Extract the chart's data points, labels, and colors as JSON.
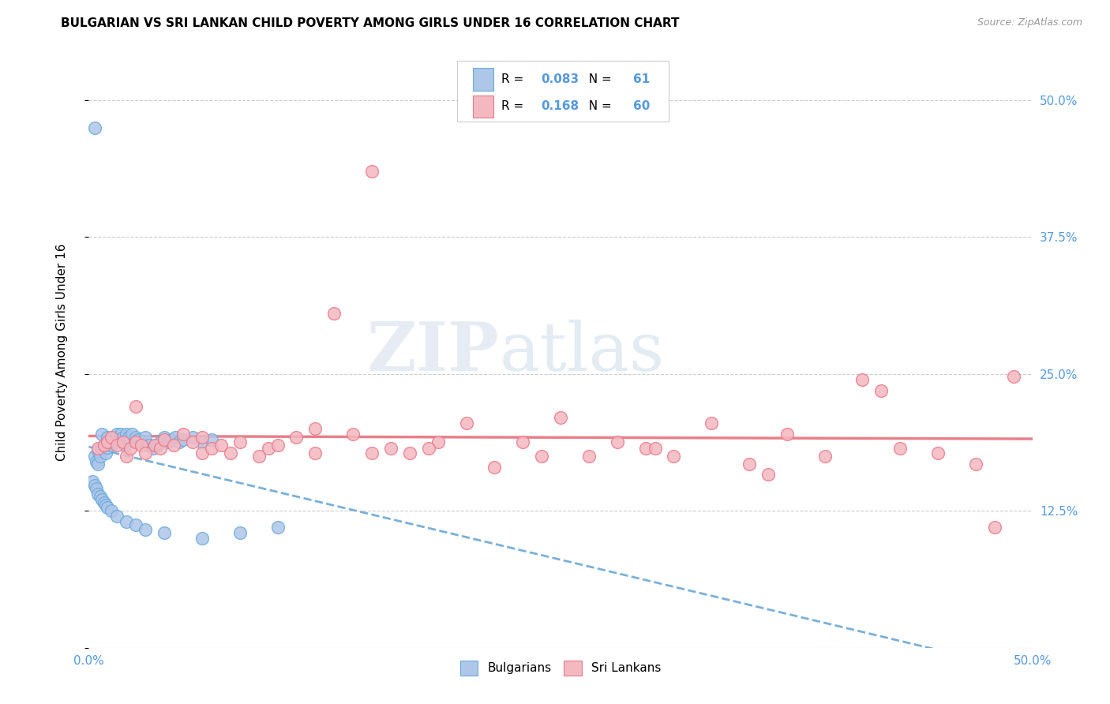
{
  "title": "BULGARIAN VS SRI LANKAN CHILD POVERTY AMONG GIRLS UNDER 16 CORRELATION CHART",
  "source": "Source: ZipAtlas.com",
  "ylabel": "Child Poverty Among Girls Under 16",
  "xlim": [
    0.0,
    0.5
  ],
  "ylim": [
    0.0,
    0.54
  ],
  "ytick_positions": [
    0.0,
    0.125,
    0.25,
    0.375,
    0.5
  ],
  "ytick_labels_right": [
    "",
    "12.5%",
    "25.0%",
    "37.5%",
    "50.0%"
  ],
  "xtick_positions": [
    0.0,
    0.1,
    0.2,
    0.3,
    0.4,
    0.5
  ],
  "xtick_labels": [
    "0.0%",
    "",
    "",
    "",
    "",
    "50.0%"
  ],
  "watermark_zip": "ZIP",
  "watermark_atlas": "atlas",
  "bg_color": "#ffffff",
  "grid_color": "#cccccc",
  "bulgarian_face": "#aec6e8",
  "bulgarian_edge": "#6aabde",
  "sri_lankan_face": "#f4b8c1",
  "sri_lankan_edge": "#e87a8a",
  "trend_blue_color": "#7ab0d8",
  "trend_pink_color": "#e8808a",
  "legend_R_bg": "0.083",
  "legend_N_bg": "61",
  "legend_R_sl": "0.168",
  "legend_N_sl": "60",
  "bg_x": [
    0.003,
    0.004,
    0.005,
    0.005,
    0.006,
    0.007,
    0.007,
    0.008,
    0.009,
    0.01,
    0.01,
    0.011,
    0.012,
    0.013,
    0.014,
    0.015,
    0.016,
    0.017,
    0.018,
    0.019,
    0.02,
    0.021,
    0.022,
    0.023,
    0.024,
    0.025,
    0.026,
    0.028,
    0.03,
    0.032,
    0.034,
    0.036,
    0.038,
    0.04,
    0.042,
    0.044,
    0.046,
    0.048,
    0.05,
    0.055,
    0.06,
    0.065,
    0.002,
    0.003,
    0.004,
    0.005,
    0.006,
    0.007,
    0.008,
    0.009,
    0.01,
    0.012,
    0.015,
    0.02,
    0.025,
    0.03,
    0.04,
    0.06,
    0.08,
    0.1,
    0.003
  ],
  "bg_y": [
    0.175,
    0.17,
    0.168,
    0.18,
    0.175,
    0.182,
    0.195,
    0.185,
    0.178,
    0.192,
    0.183,
    0.188,
    0.185,
    0.192,
    0.188,
    0.195,
    0.19,
    0.195,
    0.192,
    0.185,
    0.195,
    0.192,
    0.19,
    0.195,
    0.188,
    0.192,
    0.19,
    0.188,
    0.192,
    0.185,
    0.182,
    0.185,
    0.188,
    0.192,
    0.188,
    0.19,
    0.192,
    0.188,
    0.19,
    0.192,
    0.188,
    0.19,
    0.152,
    0.148,
    0.145,
    0.14,
    0.138,
    0.135,
    0.132,
    0.13,
    0.128,
    0.125,
    0.12,
    0.115,
    0.112,
    0.108,
    0.105,
    0.1,
    0.105,
    0.11,
    0.475
  ],
  "sl_x": [
    0.005,
    0.008,
    0.01,
    0.012,
    0.015,
    0.018,
    0.02,
    0.022,
    0.025,
    0.028,
    0.03,
    0.035,
    0.038,
    0.04,
    0.045,
    0.05,
    0.055,
    0.06,
    0.065,
    0.07,
    0.075,
    0.08,
    0.09,
    0.095,
    0.1,
    0.11,
    0.12,
    0.13,
    0.14,
    0.15,
    0.16,
    0.17,
    0.185,
    0.2,
    0.215,
    0.23,
    0.25,
    0.265,
    0.28,
    0.295,
    0.31,
    0.33,
    0.35,
    0.37,
    0.39,
    0.41,
    0.43,
    0.45,
    0.47,
    0.49,
    0.025,
    0.06,
    0.12,
    0.18,
    0.24,
    0.3,
    0.36,
    0.42,
    0.48,
    0.15
  ],
  "sl_y": [
    0.182,
    0.185,
    0.188,
    0.192,
    0.185,
    0.188,
    0.175,
    0.182,
    0.188,
    0.185,
    0.178,
    0.185,
    0.182,
    0.19,
    0.185,
    0.195,
    0.188,
    0.178,
    0.182,
    0.185,
    0.178,
    0.188,
    0.175,
    0.182,
    0.185,
    0.192,
    0.2,
    0.305,
    0.195,
    0.178,
    0.182,
    0.178,
    0.188,
    0.205,
    0.165,
    0.188,
    0.21,
    0.175,
    0.188,
    0.182,
    0.175,
    0.205,
    0.168,
    0.195,
    0.175,
    0.245,
    0.182,
    0.178,
    0.168,
    0.248,
    0.22,
    0.192,
    0.178,
    0.182,
    0.175,
    0.182,
    0.158,
    0.235,
    0.11,
    0.435
  ]
}
